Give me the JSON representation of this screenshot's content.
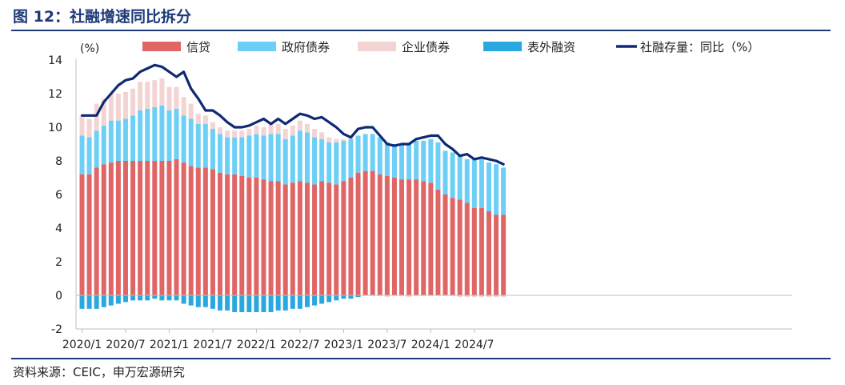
{
  "title": "图 12：社融增速同比拆分",
  "source": "资料来源：CEIC，申万宏源研究",
  "chart_data": {
    "type": "bar",
    "stacked": true,
    "unit_label": "(%)",
    "ylim": [
      -2,
      14
    ],
    "yticks": [
      "14",
      "12",
      "10",
      "8",
      "6",
      "4",
      "2",
      "0",
      "-2"
    ],
    "ytick_values": [
      14,
      12,
      10,
      8,
      6,
      4,
      2,
      0,
      -2
    ],
    "xtick_labels": [
      "2020/1",
      "2020/7",
      "2021/1",
      "2021/7",
      "2022/1",
      "2022/7",
      "2023/1",
      "2023/7",
      "2024/1",
      "2024/7"
    ],
    "xtick_indices": [
      0,
      6,
      12,
      18,
      24,
      30,
      36,
      42,
      48,
      54
    ],
    "colors": {
      "credit": "#e06666",
      "gov": "#6dcff6",
      "corp": "#f4d3d3",
      "offbs": "#29a8e0",
      "line": "#0f2a74"
    },
    "legend": [
      "信贷",
      "政府债券",
      "企业债券",
      "表外融资",
      "社融存量：同比（%）"
    ],
    "series": [
      {
        "name": "信贷",
        "key": "credit",
        "values": [
          7.2,
          7.2,
          7.6,
          7.8,
          7.9,
          8.0,
          8.0,
          8.0,
          8.0,
          8.0,
          8.0,
          8.0,
          8.0,
          8.1,
          7.9,
          7.7,
          7.6,
          7.6,
          7.5,
          7.3,
          7.2,
          7.2,
          7.1,
          7.0,
          7.0,
          6.9,
          6.8,
          6.8,
          6.6,
          6.7,
          6.8,
          6.7,
          6.6,
          6.8,
          6.7,
          6.6,
          6.8,
          7.0,
          7.3,
          7.4,
          7.4,
          7.2,
          7.1,
          7.0,
          6.9,
          6.9,
          6.9,
          6.8,
          6.7,
          6.3,
          6.0,
          5.8,
          5.7,
          5.5,
          5.2,
          5.2,
          5.0,
          4.8,
          4.8
        ]
      },
      {
        "name": "政府债券",
        "key": "gov",
        "values": [
          2.3,
          2.2,
          2.2,
          2.3,
          2.5,
          2.4,
          2.5,
          2.7,
          3.0,
          3.1,
          3.2,
          3.3,
          3.0,
          3.0,
          2.8,
          2.8,
          2.6,
          2.6,
          2.4,
          2.3,
          2.2,
          2.2,
          2.3,
          2.5,
          2.6,
          2.6,
          2.8,
          2.8,
          2.7,
          2.8,
          3.0,
          3.0,
          2.8,
          2.5,
          2.4,
          2.5,
          2.4,
          2.3,
          2.2,
          2.2,
          2.2,
          2.2,
          2.0,
          2.0,
          2.1,
          2.1,
          2.3,
          2.4,
          2.6,
          2.8,
          2.6,
          2.7,
          2.6,
          2.6,
          2.9,
          2.9,
          2.9,
          3.0,
          2.8
        ]
      },
      {
        "name": "企业债券",
        "key": "corp",
        "values": [
          1.2,
          1.1,
          1.6,
          1.6,
          1.6,
          1.6,
          1.6,
          1.6,
          1.7,
          1.6,
          1.6,
          1.6,
          1.4,
          1.3,
          1.1,
          0.9,
          0.6,
          0.5,
          0.4,
          0.4,
          0.4,
          0.4,
          0.4,
          0.4,
          0.5,
          0.5,
          0.6,
          0.6,
          0.6,
          0.6,
          0.6,
          0.5,
          0.5,
          0.4,
          0.3,
          0.2,
          0.1,
          0.1,
          0.0,
          0.0,
          0.0,
          0.0,
          -0.1,
          0.0,
          0.0,
          -0.1,
          0.0,
          0.0,
          0.0,
          0.0,
          0.0,
          0.0,
          -0.1,
          -0.1,
          -0.1,
          -0.1,
          -0.1,
          -0.1,
          -0.1
        ]
      },
      {
        "name": "表外融资",
        "key": "offbs",
        "values": [
          -0.8,
          -0.8,
          -0.8,
          -0.7,
          -0.6,
          -0.5,
          -0.4,
          -0.3,
          -0.3,
          -0.3,
          -0.2,
          -0.3,
          -0.3,
          -0.3,
          -0.5,
          -0.6,
          -0.7,
          -0.7,
          -0.8,
          -0.9,
          -0.9,
          -1.0,
          -1.0,
          -1.0,
          -1.0,
          -1.0,
          -1.0,
          -0.9,
          -0.9,
          -0.8,
          -0.8,
          -0.7,
          -0.6,
          -0.5,
          -0.4,
          -0.3,
          -0.2,
          -0.2,
          -0.1,
          0.0,
          0.0,
          0.0,
          0.0,
          0.0,
          0.0,
          0.0,
          0.0,
          0.0,
          0.0,
          0.0,
          0.0,
          0.0,
          0.0,
          0.0,
          0.0,
          0.0,
          0.0,
          0.0,
          0.0
        ]
      }
    ],
    "line": {
      "name": "社融存量：同比（%）",
      "values": [
        10.7,
        10.7,
        10.7,
        11.5,
        12.0,
        12.5,
        12.8,
        12.9,
        13.3,
        13.5,
        13.7,
        13.6,
        13.3,
        13.0,
        13.3,
        12.3,
        11.7,
        11.0,
        11.0,
        10.7,
        10.3,
        10.0,
        10.0,
        10.1,
        10.3,
        10.5,
        10.2,
        10.5,
        10.2,
        10.5,
        10.8,
        10.7,
        10.5,
        10.6,
        10.3,
        10.0,
        9.6,
        9.4,
        9.9,
        10.0,
        10.0,
        9.5,
        9.0,
        8.9,
        9.0,
        9.0,
        9.3,
        9.4,
        9.5,
        9.5,
        9.0,
        8.7,
        8.3,
        8.4,
        8.1,
        8.2,
        8.1,
        8.0,
        7.8
      ]
    }
  }
}
